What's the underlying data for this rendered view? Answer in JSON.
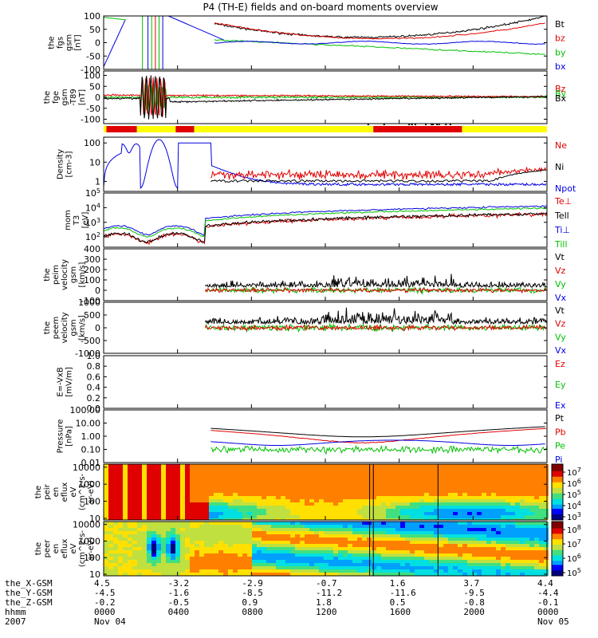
{
  "chart_data": {
    "type": "multi-panel time series",
    "title": "P4 (TH-E) fields and on-board moments overview",
    "time_ticks": [
      "0000",
      "0400",
      "0800",
      "1200",
      "1600",
      "2000",
      "0000"
    ],
    "date_labels": {
      "start": "Nov 04",
      "end": "Nov 05",
      "year": "2007"
    },
    "time_range_hours": [
      0,
      24
    ],
    "ephemeris_rows": [
      {
        "label": "the_X-GSM",
        "values": [
          "4.5",
          "-3.2",
          "-2.9",
          "-0.7",
          "1.6",
          "3.7",
          "4.4"
        ]
      },
      {
        "label": "the_Y-GSM",
        "values": [
          "-4.5",
          "-1.6",
          "-8.5",
          "-11.2",
          "-11.6",
          "-9.5",
          "-4.4"
        ]
      },
      {
        "label": "the_Z-GSM",
        "values": [
          "-0.2",
          "-0.5",
          "0.9",
          "1.8",
          "0.5",
          "-0.8",
          "-0.1"
        ]
      },
      {
        "label": "hhmm",
        "values": [
          "0000",
          "0400",
          "0800",
          "1200",
          "1600",
          "2000",
          "0000"
        ]
      }
    ],
    "panels": [
      {
        "id": "fgs",
        "ylabel": [
          "the",
          "fgs",
          "gsm",
          "[nT]"
        ],
        "scale": "linear",
        "ylim": [
          -100,
          100
        ],
        "ticks": [
          "100",
          "50",
          "0",
          "-50",
          "-100"
        ],
        "legend": [
          {
            "name": "Bt",
            "color": "#000000"
          },
          {
            "name": "bz",
            "color": "#e00000"
          },
          {
            "name": "by",
            "color": "#00c000"
          },
          {
            "name": "bx",
            "color": "#0000e0"
          }
        ]
      },
      {
        "id": "fge",
        "ylabel": [
          "the",
          "fge",
          "gsm",
          "-T89",
          "[nT]"
        ],
        "scale": "linear",
        "ylim": [
          -120,
          120
        ],
        "ticks": [
          "100",
          "50",
          "0",
          "-50",
          "-100"
        ],
        "legend": [
          {
            "name": "Bz",
            "color": "#e00000"
          },
          {
            "name": "By",
            "color": "#00c000"
          },
          {
            "name": "Bx",
            "color": "#000000"
          }
        ]
      },
      {
        "id": "mode",
        "ylabel": [],
        "scale": "bar",
        "ticks": [],
        "legend": [],
        "segments": [
          {
            "start": 0.0,
            "end": 0.15,
            "color": "#ffff00"
          },
          {
            "start": 0.15,
            "end": 1.8,
            "color": "#e00000"
          },
          {
            "start": 1.8,
            "end": 3.9,
            "color": "#ffff00"
          },
          {
            "start": 3.9,
            "end": 4.9,
            "color": "#e00000"
          },
          {
            "start": 4.9,
            "end": 14.6,
            "color": "#ffff00"
          },
          {
            "start": 14.6,
            "end": 19.4,
            "color": "#e00000"
          },
          {
            "start": 19.4,
            "end": 24.0,
            "color": "#ffff00"
          }
        ]
      },
      {
        "id": "density",
        "ylabel": [
          "Density",
          "[cm-3]"
        ],
        "scale": "log",
        "ylim": [
          0.3,
          200
        ],
        "ticks": [
          "100",
          "10",
          "1"
        ],
        "legend": [
          {
            "name": "Ne",
            "color": "#e00000"
          },
          {
            "name": "Ni",
            "color": "#000000"
          },
          {
            "name": "Npot",
            "color": "#0000e0"
          }
        ]
      },
      {
        "id": "temp",
        "ylabel": [
          "mom",
          "T3",
          "[eV]"
        ],
        "scale": "log",
        "ylim": [
          20,
          100000
        ],
        "ticks": [
          "10^5",
          "10^4",
          "10^3",
          "10^2"
        ],
        "legend": [
          {
            "name": "Te⊥",
            "color": "#e00000"
          },
          {
            "name": "Tell",
            "color": "#000000"
          },
          {
            "name": "Ti⊥",
            "color": "#0000e0"
          },
          {
            "name": "Till",
            "color": "#00c000"
          }
        ]
      },
      {
        "id": "peim",
        "ylabel": [
          "the",
          "peim",
          "velocity",
          "gsm",
          "[km/s]"
        ],
        "scale": "linear",
        "ylim": [
          -100,
          400
        ],
        "ticks": [
          "400",
          "300",
          "200",
          "100",
          "0",
          "-100"
        ],
        "legend": [
          {
            "name": "Vt",
            "color": "#000000"
          },
          {
            "name": "Vz",
            "color": "#e00000"
          },
          {
            "name": "Vy",
            "color": "#00c000"
          },
          {
            "name": "Vx",
            "color": "#0000e0"
          }
        ]
      },
      {
        "id": "peem",
        "ylabel": [
          "the",
          "peem",
          "velocity",
          "gsm",
          "[km/s]"
        ],
        "scale": "linear",
        "ylim": [
          -1000,
          1000
        ],
        "ticks": [
          "1000",
          "500",
          "0",
          "-500",
          "-1000"
        ],
        "legend": [
          {
            "name": "Vt",
            "color": "#000000"
          },
          {
            "name": "Vz",
            "color": "#e00000"
          },
          {
            "name": "Vy",
            "color": "#00c000"
          },
          {
            "name": "Vx",
            "color": "#0000e0"
          }
        ]
      },
      {
        "id": "efield",
        "ylabel": [
          "E=-VxB",
          "[mV/m]"
        ],
        "scale": "linear",
        "ylim": [
          0,
          1
        ],
        "ticks": [
          "1.0",
          "0.8",
          "0.6",
          "0.4",
          "0.2",
          "0.0"
        ],
        "legend": [
          {
            "name": "Ez",
            "color": "#e00000"
          },
          {
            "name": "Ey",
            "color": "#00c000"
          },
          {
            "name": "Ex",
            "color": "#0000e0"
          }
        ]
      },
      {
        "id": "pressure",
        "ylabel": [
          "Pressure",
          "[nPa]"
        ],
        "scale": "log",
        "ylim": [
          0.01,
          100
        ],
        "ticks": [
          "100.00",
          "10.00",
          "1.00",
          "0.10",
          "0.01"
        ],
        "legend": [
          {
            "name": "Pt",
            "color": "#000000"
          },
          {
            "name": "Pb",
            "color": "#e00000"
          },
          {
            "name": "Pe",
            "color": "#00c000"
          },
          {
            "name": "Pi",
            "color": "#0000e0"
          }
        ]
      },
      {
        "id": "peir",
        "ylabel": [
          "the",
          "peir",
          "en",
          "eflux",
          "eV",
          "(cm^2-s-",
          "sr-eV)"
        ],
        "scale": "log",
        "ylim": [
          8,
          15000
        ],
        "ticks": [
          "10000",
          "1000",
          "100",
          "10"
        ],
        "colorbar": [
          "10^7",
          "10^6",
          "10^5",
          "10^4",
          "10^3"
        ]
      },
      {
        "id": "peer",
        "ylabel": [
          "the",
          "peer",
          "en",
          "eflux",
          "eV",
          "(cm^2-s-",
          "sr-eV)"
        ],
        "scale": "log",
        "ylim": [
          8,
          15000
        ],
        "ticks": [
          "10000",
          "1000",
          "100",
          "10"
        ],
        "colorbar": [
          "10^8",
          "10^7",
          "10^6",
          "10^5"
        ]
      }
    ]
  }
}
